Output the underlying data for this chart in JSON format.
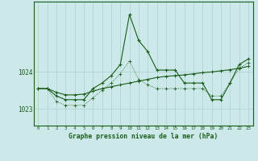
{
  "title": "Graphe pression niveau de la mer (hPa)",
  "background_color": "#cce8e8",
  "grid_color": "#b0d4d4",
  "line_color": "#1a5c1a",
  "x": [
    0,
    1,
    2,
    3,
    4,
    5,
    6,
    7,
    8,
    9,
    10,
    11,
    12,
    13,
    14,
    15,
    16,
    17,
    18,
    19,
    20,
    21,
    22,
    23
  ],
  "y_line1": [
    1023.55,
    1023.55,
    1023.35,
    1023.25,
    1023.25,
    1023.25,
    1023.55,
    1023.7,
    1023.9,
    1024.2,
    1025.55,
    1024.85,
    1024.55,
    1024.05,
    1024.05,
    1024.05,
    1023.7,
    1023.7,
    1023.7,
    1023.25,
    1023.25,
    1023.7,
    1024.2,
    1024.35
  ],
  "y_line2": [
    1023.55,
    1023.55,
    1023.2,
    1023.1,
    1023.1,
    1023.1,
    1023.3,
    1023.5,
    1023.7,
    1023.95,
    1024.3,
    1023.8,
    1023.65,
    1023.55,
    1023.55,
    1023.55,
    1023.55,
    1023.55,
    1023.55,
    1023.35,
    1023.35,
    1023.7,
    1024.1,
    1024.25
  ],
  "y_smooth": [
    1023.55,
    1023.55,
    1023.45,
    1023.38,
    1023.38,
    1023.4,
    1023.48,
    1023.55,
    1023.6,
    1023.65,
    1023.7,
    1023.75,
    1023.8,
    1023.85,
    1023.88,
    1023.9,
    1023.92,
    1023.95,
    1023.98,
    1024.0,
    1024.03,
    1024.06,
    1024.1,
    1024.15
  ],
  "ylim_min": 1022.55,
  "ylim_max": 1025.9,
  "yticks": [
    1023,
    1024
  ],
  "figsize": [
    3.2,
    2.0
  ],
  "dpi": 100
}
